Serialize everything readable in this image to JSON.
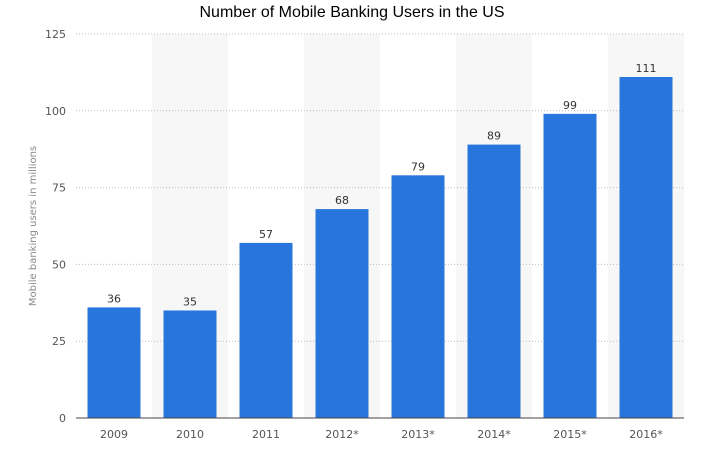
{
  "chart_data": {
    "type": "bar",
    "title": "Number of Mobile Banking Users in the US",
    "ylabel": "Mobile banking users in millions",
    "xlabel": "",
    "categories": [
      "2009",
      "2010",
      "2011",
      "2012*",
      "2013*",
      "2014*",
      "2015*",
      "2016*"
    ],
    "values": [
      36,
      35,
      57,
      68,
      79,
      89,
      99,
      111
    ],
    "ylim": [
      0,
      125
    ],
    "yticks": [
      0,
      25,
      50,
      75,
      100,
      125
    ],
    "grid": true,
    "legend": "none",
    "bar_color": "#2876dd",
    "band_color": "#f7f7f7"
  }
}
